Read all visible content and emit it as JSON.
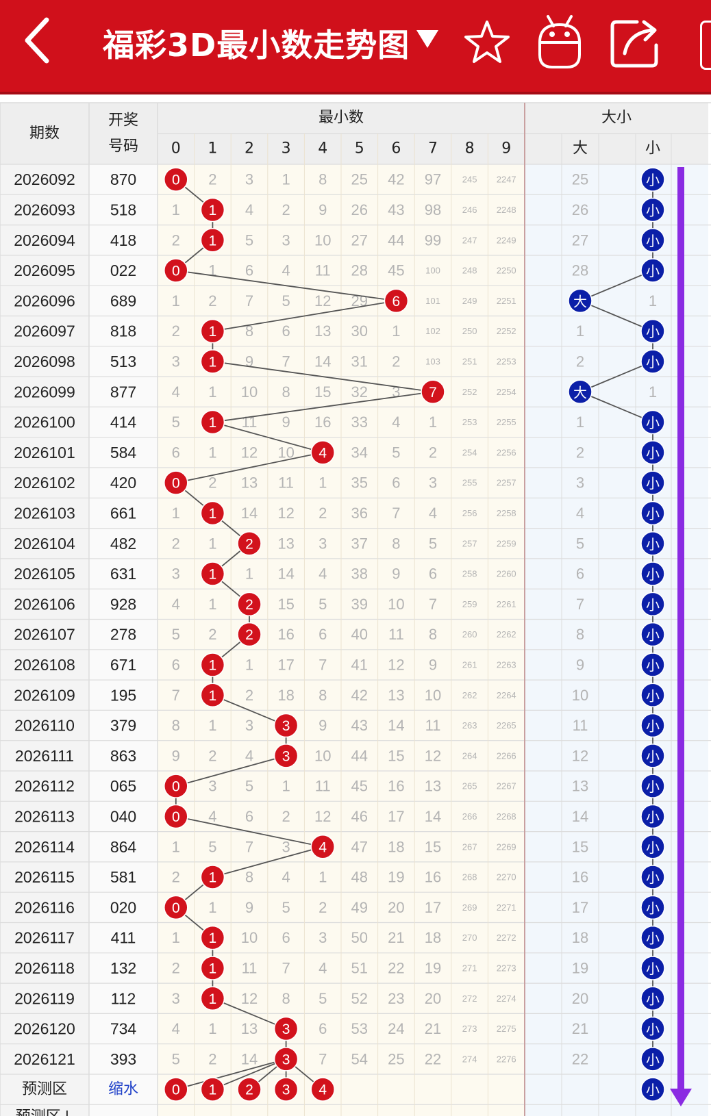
{
  "header": {
    "title": "福彩3D最小数走势图",
    "bg_color": "#d0101b",
    "icons": [
      "back-icon",
      "dropdown-arrow-icon",
      "star-icon",
      "android-robot-icon",
      "share-icon"
    ]
  },
  "table": {
    "col_headers": {
      "issue": "期数",
      "number_line1": "开奖",
      "number_line2": "号码",
      "min_group": "最小数",
      "size_group": "大小",
      "digits": [
        "0",
        "1",
        "2",
        "3",
        "4",
        "5",
        "6",
        "7",
        "8",
        "9"
      ],
      "big": "大",
      "small": "小"
    },
    "rows": [
      {
        "issue": "2026092",
        "number": "870",
        "min": 0,
        "miss": [
          "0",
          "2",
          "3",
          "1",
          "8",
          "25",
          "42",
          "97",
          "245",
          "2247"
        ],
        "size": "small",
        "big_miss": "25",
        "small_miss": ""
      },
      {
        "issue": "2026093",
        "number": "518",
        "min": 1,
        "miss": [
          "1",
          "1",
          "4",
          "2",
          "9",
          "26",
          "43",
          "98",
          "246",
          "2248"
        ],
        "size": "small",
        "big_miss": "26",
        "small_miss": ""
      },
      {
        "issue": "2026094",
        "number": "418",
        "min": 1,
        "miss": [
          "2",
          "1",
          "5",
          "3",
          "10",
          "27",
          "44",
          "99",
          "247",
          "2249"
        ],
        "size": "small",
        "big_miss": "27",
        "small_miss": ""
      },
      {
        "issue": "2026095",
        "number": "022",
        "min": 0,
        "miss": [
          "0",
          "1",
          "6",
          "4",
          "11",
          "28",
          "45",
          "100",
          "248",
          "2250"
        ],
        "size": "small",
        "big_miss": "28",
        "small_miss": ""
      },
      {
        "issue": "2026096",
        "number": "689",
        "min": 6,
        "miss": [
          "1",
          "2",
          "7",
          "5",
          "12",
          "29",
          "6",
          "101",
          "249",
          "2251"
        ],
        "size": "big",
        "big_miss": "",
        "small_miss": "1"
      },
      {
        "issue": "2026097",
        "number": "818",
        "min": 1,
        "miss": [
          "2",
          "1",
          "8",
          "6",
          "13",
          "30",
          "1",
          "102",
          "250",
          "2252"
        ],
        "size": "small",
        "big_miss": "1",
        "small_miss": ""
      },
      {
        "issue": "2026098",
        "number": "513",
        "min": 1,
        "miss": [
          "3",
          "1",
          "9",
          "7",
          "14",
          "31",
          "2",
          "103",
          "251",
          "2253"
        ],
        "size": "small",
        "big_miss": "2",
        "small_miss": ""
      },
      {
        "issue": "2026099",
        "number": "877",
        "min": 7,
        "miss": [
          "4",
          "1",
          "10",
          "8",
          "15",
          "32",
          "3",
          "7",
          "252",
          "2254"
        ],
        "size": "big",
        "big_miss": "",
        "small_miss": "1"
      },
      {
        "issue": "2026100",
        "number": "414",
        "min": 1,
        "miss": [
          "5",
          "1",
          "11",
          "9",
          "16",
          "33",
          "4",
          "1",
          "253",
          "2255"
        ],
        "size": "small",
        "big_miss": "1",
        "small_miss": ""
      },
      {
        "issue": "2026101",
        "number": "584",
        "min": 4,
        "miss": [
          "6",
          "1",
          "12",
          "10",
          "4",
          "34",
          "5",
          "2",
          "254",
          "2256"
        ],
        "size": "small",
        "big_miss": "2",
        "small_miss": ""
      },
      {
        "issue": "2026102",
        "number": "420",
        "min": 0,
        "miss": [
          "0",
          "2",
          "13",
          "11",
          "1",
          "35",
          "6",
          "3",
          "255",
          "2257"
        ],
        "size": "small",
        "big_miss": "3",
        "small_miss": ""
      },
      {
        "issue": "2026103",
        "number": "661",
        "min": 1,
        "miss": [
          "1",
          "1",
          "14",
          "12",
          "2",
          "36",
          "7",
          "4",
          "256",
          "2258"
        ],
        "size": "small",
        "big_miss": "4",
        "small_miss": ""
      },
      {
        "issue": "2026104",
        "number": "482",
        "min": 2,
        "miss": [
          "2",
          "1",
          "2",
          "13",
          "3",
          "37",
          "8",
          "5",
          "257",
          "2259"
        ],
        "size": "small",
        "big_miss": "5",
        "small_miss": ""
      },
      {
        "issue": "2026105",
        "number": "631",
        "min": 1,
        "miss": [
          "3",
          "1",
          "1",
          "14",
          "4",
          "38",
          "9",
          "6",
          "258",
          "2260"
        ],
        "size": "small",
        "big_miss": "6",
        "small_miss": ""
      },
      {
        "issue": "2026106",
        "number": "928",
        "min": 2,
        "miss": [
          "4",
          "1",
          "2",
          "15",
          "5",
          "39",
          "10",
          "7",
          "259",
          "2261"
        ],
        "size": "small",
        "big_miss": "7",
        "small_miss": ""
      },
      {
        "issue": "2026107",
        "number": "278",
        "min": 2,
        "miss": [
          "5",
          "2",
          "2",
          "16",
          "6",
          "40",
          "11",
          "8",
          "260",
          "2262"
        ],
        "size": "small",
        "big_miss": "8",
        "small_miss": ""
      },
      {
        "issue": "2026108",
        "number": "671",
        "min": 1,
        "miss": [
          "6",
          "1",
          "1",
          "17",
          "7",
          "41",
          "12",
          "9",
          "261",
          "2263"
        ],
        "size": "small",
        "big_miss": "9",
        "small_miss": ""
      },
      {
        "issue": "2026109",
        "number": "195",
        "min": 1,
        "miss": [
          "7",
          "1",
          "2",
          "18",
          "8",
          "42",
          "13",
          "10",
          "262",
          "2264"
        ],
        "size": "small",
        "big_miss": "10",
        "small_miss": ""
      },
      {
        "issue": "2026110",
        "number": "379",
        "min": 3,
        "miss": [
          "8",
          "1",
          "3",
          "3",
          "9",
          "43",
          "14",
          "11",
          "263",
          "2265"
        ],
        "size": "small",
        "big_miss": "11",
        "small_miss": ""
      },
      {
        "issue": "2026111",
        "number": "863",
        "min": 3,
        "miss": [
          "9",
          "2",
          "4",
          "3",
          "10",
          "44",
          "15",
          "12",
          "264",
          "2266"
        ],
        "size": "small",
        "big_miss": "12",
        "small_miss": ""
      },
      {
        "issue": "2026112",
        "number": "065",
        "min": 0,
        "miss": [
          "0",
          "3",
          "5",
          "1",
          "11",
          "45",
          "16",
          "13",
          "265",
          "2267"
        ],
        "size": "small",
        "big_miss": "13",
        "small_miss": ""
      },
      {
        "issue": "2026113",
        "number": "040",
        "min": 0,
        "miss": [
          "0",
          "4",
          "6",
          "2",
          "12",
          "46",
          "17",
          "14",
          "266",
          "2268"
        ],
        "size": "small",
        "big_miss": "14",
        "small_miss": ""
      },
      {
        "issue": "2026114",
        "number": "864",
        "min": 4,
        "miss": [
          "1",
          "5",
          "7",
          "3",
          "4",
          "47",
          "18",
          "15",
          "267",
          "2269"
        ],
        "size": "small",
        "big_miss": "15",
        "small_miss": ""
      },
      {
        "issue": "2026115",
        "number": "581",
        "min": 1,
        "miss": [
          "2",
          "1",
          "8",
          "4",
          "1",
          "48",
          "19",
          "16",
          "268",
          "2270"
        ],
        "size": "small",
        "big_miss": "16",
        "small_miss": ""
      },
      {
        "issue": "2026116",
        "number": "020",
        "min": 0,
        "miss": [
          "0",
          "1",
          "9",
          "5",
          "2",
          "49",
          "20",
          "17",
          "269",
          "2271"
        ],
        "size": "small",
        "big_miss": "17",
        "small_miss": ""
      },
      {
        "issue": "2026117",
        "number": "411",
        "min": 1,
        "miss": [
          "1",
          "1",
          "10",
          "6",
          "3",
          "50",
          "21",
          "18",
          "270",
          "2272"
        ],
        "size": "small",
        "big_miss": "18",
        "small_miss": ""
      },
      {
        "issue": "2026118",
        "number": "132",
        "min": 1,
        "miss": [
          "2",
          "1",
          "11",
          "7",
          "4",
          "51",
          "22",
          "19",
          "271",
          "2273"
        ],
        "size": "small",
        "big_miss": "19",
        "small_miss": ""
      },
      {
        "issue": "2026119",
        "number": "112",
        "min": 1,
        "miss": [
          "3",
          "1",
          "12",
          "8",
          "5",
          "52",
          "23",
          "20",
          "272",
          "2274"
        ],
        "size": "small",
        "big_miss": "20",
        "small_miss": ""
      },
      {
        "issue": "2026120",
        "number": "734",
        "min": 3,
        "miss": [
          "4",
          "1",
          "13",
          "3",
          "6",
          "53",
          "24",
          "21",
          "273",
          "2275"
        ],
        "size": "small",
        "big_miss": "21",
        "small_miss": ""
      },
      {
        "issue": "2026121",
        "number": "393",
        "min": 3,
        "miss": [
          "5",
          "2",
          "14",
          "3",
          "7",
          "54",
          "25",
          "22",
          "274",
          "2276"
        ],
        "size": "small",
        "big_miss": "22",
        "small_miss": ""
      }
    ],
    "predict_row": {
      "label": "预测区",
      "action": "缩水",
      "balls": [
        0,
        1,
        2,
        3,
        4
      ],
      "size_ball": "小"
    },
    "predict_row2_label": "预测区↓"
  },
  "colors": {
    "red_ball": "#d2121c",
    "blue_ball": "#0b1fa8",
    "size_bar": "#8a2be2",
    "grid_line": "#dcdcdc",
    "header_bg": "#eeeeee",
    "row_bg_odd": "#fdfaf0",
    "size_bg": "#f2f7fc"
  }
}
